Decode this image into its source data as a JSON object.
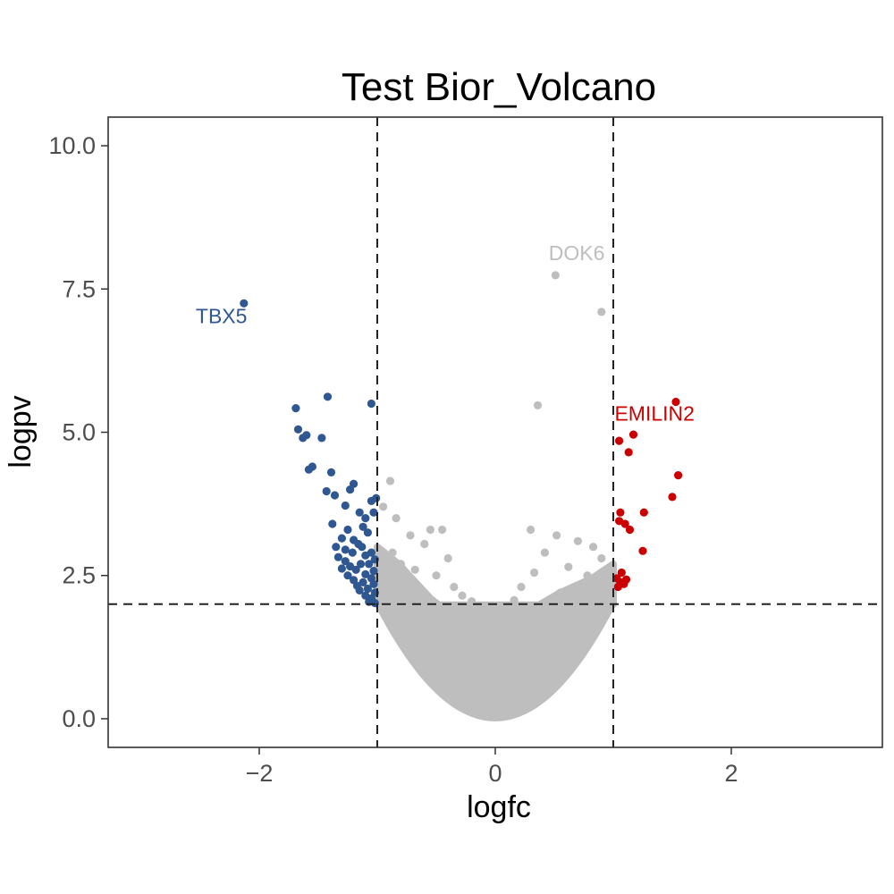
{
  "chart_data": {
    "type": "scatter",
    "title": "Test Bior_Volcano",
    "xlabel": "logfc",
    "ylabel": "logpv",
    "xlim": [
      -3.28,
      3.28
    ],
    "ylim": [
      -0.5,
      10.5
    ],
    "x_ticks": [
      -2,
      0,
      2
    ],
    "x_tick_labels": [
      "−2",
      "0",
      "2"
    ],
    "y_ticks": [
      0,
      2.5,
      5,
      7.5,
      10
    ],
    "y_tick_labels": [
      "0.0",
      "2.5",
      "5.0",
      "7.5",
      "10.0"
    ],
    "grid": false,
    "legend": false,
    "thresholds": {
      "logfc": [
        -1,
        1
      ],
      "logpv": 2
    },
    "colors": {
      "down": "#2f5792",
      "up": "#cc0000",
      "ns": "#bebebe"
    },
    "series": [
      {
        "color": "#2f5792",
        "points": [
          [
            -2.13,
            7.25
          ],
          [
            -1.42,
            5.62
          ],
          [
            -1.05,
            5.5
          ],
          [
            -1.69,
            5.42
          ],
          [
            -1.67,
            5.05
          ],
          [
            -1.63,
            4.9
          ],
          [
            -1.6,
            4.95
          ],
          [
            -1.47,
            4.9
          ],
          [
            -1.55,
            4.4
          ],
          [
            -1.58,
            4.35
          ],
          [
            -1.39,
            4.3
          ],
          [
            -1.43,
            3.97
          ],
          [
            -1.2,
            4.1
          ],
          [
            -1.23,
            4.0
          ],
          [
            -1.36,
            3.9
          ],
          [
            -1.01,
            3.85
          ],
          [
            -1.05,
            3.8
          ],
          [
            -1.27,
            3.72
          ],
          [
            -1.03,
            3.6
          ],
          [
            -1.15,
            3.6
          ],
          [
            -1.1,
            3.5
          ],
          [
            -1.38,
            3.4
          ],
          [
            -1.12,
            3.35
          ],
          [
            -1.25,
            3.3
          ],
          [
            -1.08,
            3.25
          ],
          [
            -1.3,
            3.15
          ],
          [
            -1.2,
            3.12
          ],
          [
            -1.16,
            3.05
          ],
          [
            -1.13,
            3.0
          ],
          [
            -1.35,
            3.0
          ],
          [
            -1.27,
            2.95
          ],
          [
            -1.21,
            2.9
          ],
          [
            -1.05,
            2.9
          ],
          [
            -1.1,
            2.85
          ],
          [
            -1.33,
            2.82
          ],
          [
            -1.02,
            2.78
          ],
          [
            -1.27,
            2.75
          ],
          [
            -1.14,
            2.7
          ],
          [
            -1.07,
            2.7
          ],
          [
            -1.23,
            2.66
          ],
          [
            -1.3,
            2.62
          ],
          [
            -1.18,
            2.6
          ],
          [
            -1.03,
            2.58
          ],
          [
            -1.1,
            2.52
          ],
          [
            -1.25,
            2.5
          ],
          [
            -1.05,
            2.45
          ],
          [
            -1.2,
            2.42
          ],
          [
            -1.12,
            2.38
          ],
          [
            -1.03,
            2.35
          ],
          [
            -1.17,
            2.32
          ],
          [
            -1.08,
            2.27
          ],
          [
            -1.15,
            2.24
          ],
          [
            -1.02,
            2.2
          ],
          [
            -1.1,
            2.15
          ],
          [
            -1.05,
            2.1
          ],
          [
            -1.07,
            2.04
          ],
          [
            -1.02,
            2.02
          ]
        ]
      },
      {
        "color": "#cc0000",
        "points": [
          [
            1.53,
            5.53
          ],
          [
            1.05,
            4.85
          ],
          [
            1.17,
            4.96
          ],
          [
            1.13,
            4.65
          ],
          [
            1.55,
            4.25
          ],
          [
            1.5,
            3.87
          ],
          [
            1.06,
            3.6
          ],
          [
            1.26,
            3.6
          ],
          [
            1.05,
            3.45
          ],
          [
            1.1,
            3.4
          ],
          [
            1.14,
            3.3
          ],
          [
            1.25,
            2.93
          ],
          [
            1.07,
            2.55
          ],
          [
            1.03,
            2.45
          ],
          [
            1.11,
            2.43
          ],
          [
            1.06,
            2.38
          ],
          [
            1.09,
            2.35
          ],
          [
            1.04,
            2.3
          ]
        ]
      },
      {
        "color": "#bebebe",
        "points": [
          [
            0.51,
            7.74
          ],
          [
            0.9,
            7.1
          ],
          [
            0.36,
            5.47
          ],
          [
            -0.89,
            4.15
          ],
          [
            -0.95,
            3.7
          ],
          [
            -0.84,
            3.5
          ],
          [
            -0.55,
            3.3
          ],
          [
            -0.45,
            3.3
          ],
          [
            -0.72,
            3.2
          ],
          [
            -0.6,
            3.05
          ],
          [
            -0.87,
            2.9
          ],
          [
            -0.4,
            2.8
          ],
          [
            -0.8,
            2.7
          ],
          [
            -0.68,
            2.6
          ],
          [
            -0.5,
            2.5
          ],
          [
            -0.9,
            2.4
          ],
          [
            -0.35,
            2.3
          ],
          [
            -0.75,
            2.25
          ],
          [
            -0.28,
            2.15
          ],
          [
            -0.62,
            2.1
          ],
          [
            -0.2,
            2.05
          ],
          [
            0.3,
            3.3
          ],
          [
            0.52,
            3.2
          ],
          [
            0.7,
            3.1
          ],
          [
            0.83,
            3.0
          ],
          [
            0.42,
            2.9
          ],
          [
            0.9,
            2.8
          ],
          [
            0.62,
            2.65
          ],
          [
            0.33,
            2.55
          ],
          [
            0.78,
            2.5
          ],
          [
            0.95,
            2.4
          ],
          [
            0.22,
            2.3
          ],
          [
            0.55,
            2.2
          ],
          [
            0.84,
            2.15
          ],
          [
            0.16,
            2.07
          ],
          [
            0.97,
            2.06
          ]
        ]
      }
    ],
    "annotations": [
      {
        "text": "TBX5",
        "x": -2.32,
        "y": 6.9,
        "color": "#2f5792"
      },
      {
        "text": "DOK6",
        "x": 0.69,
        "y": 8.0,
        "color": "#bebebe"
      },
      {
        "text": "EMILIN2",
        "x": 1.35,
        "y": 5.2,
        "color": "#cc0000"
      }
    ]
  }
}
